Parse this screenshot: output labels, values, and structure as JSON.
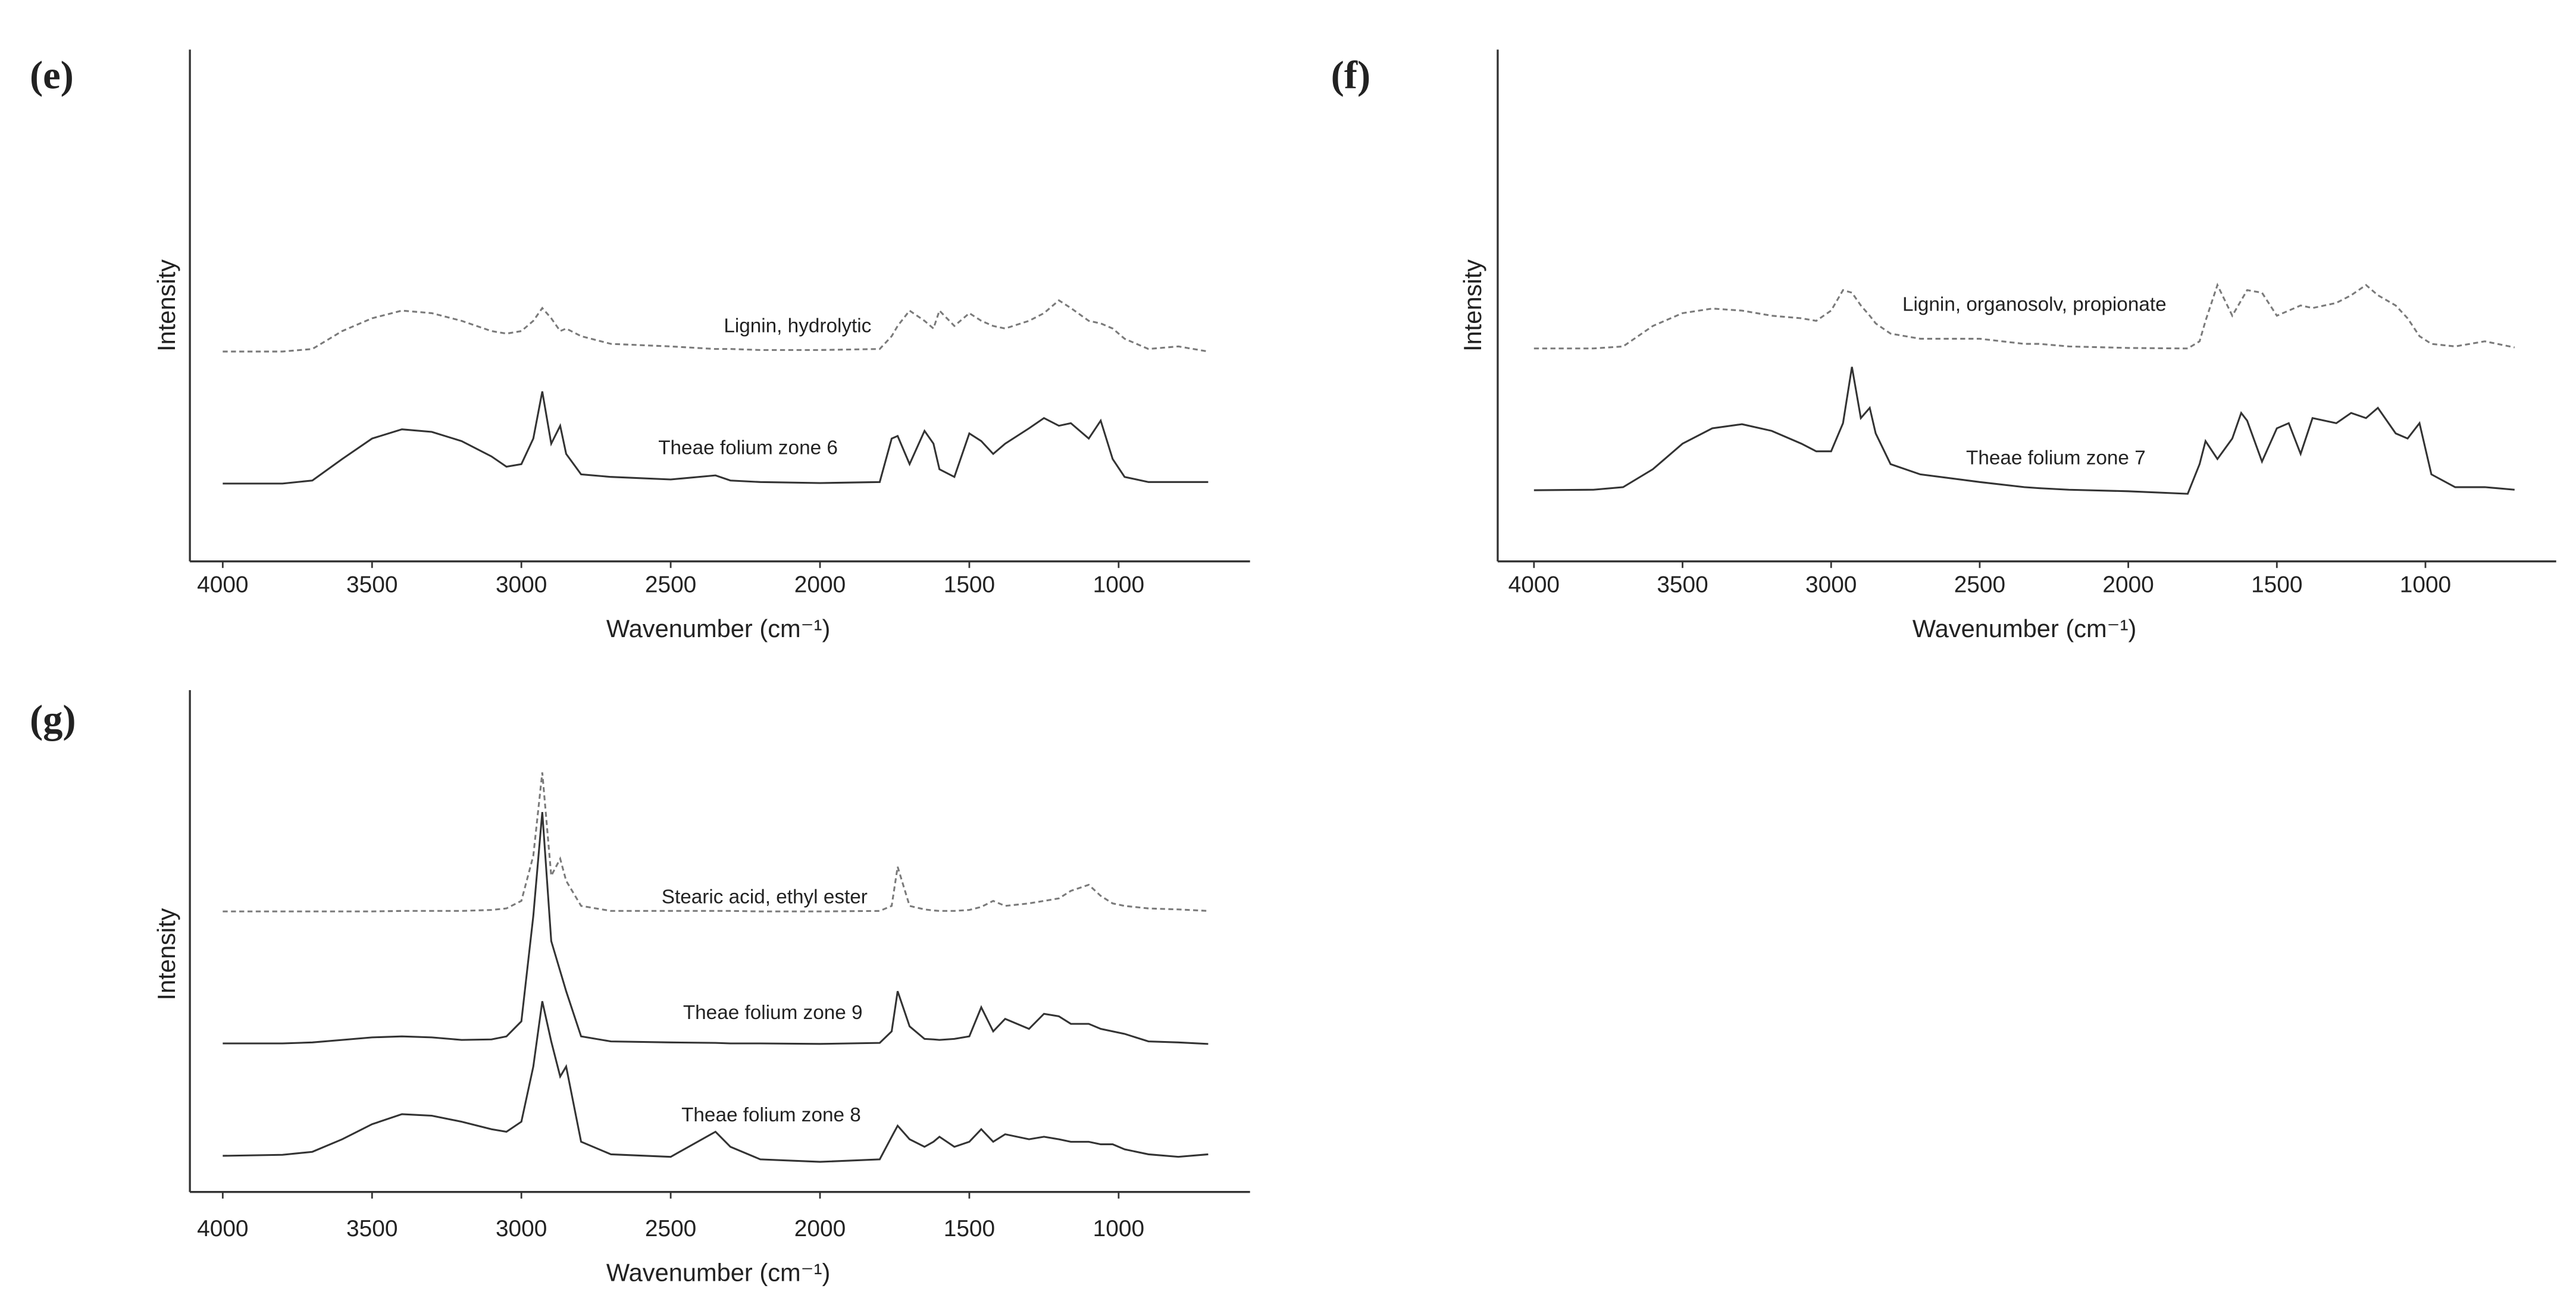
{
  "chart_data": [
    {
      "type": "line",
      "label": "(e)",
      "y_label": "Intensity",
      "x_label": "Wavenumber (cm⁻¹)",
      "xlim": [
        4110,
        560
      ],
      "xticks": [
        4000,
        3500,
        3000,
        2500,
        2000,
        1500,
        1000
      ],
      "ylim": [
        0,
        100
      ],
      "x": [
        4000,
        3800,
        3700,
        3600,
        3500,
        3400,
        3300,
        3200,
        3100,
        3050,
        3000,
        2960,
        2930,
        2900,
        2870,
        2850,
        2800,
        2700,
        2500,
        2350,
        2300,
        2200,
        2000,
        1800,
        1760,
        1740,
        1700,
        1650,
        1620,
        1600,
        1550,
        1500,
        1460,
        1420,
        1380,
        1300,
        1250,
        1200,
        1160,
        1100,
        1060,
        1020,
        980,
        900,
        800,
        700
      ],
      "series": [
        {
          "name": "Lignin, hydrolytic",
          "color": "#7a7a7a",
          "line_style": "dashed",
          "values": [
            41,
            41,
            41.5,
            45,
            47.5,
            49,
            48.5,
            47,
            45,
            44.5,
            45,
            47,
            49.5,
            47.5,
            45,
            45.5,
            44,
            42.5,
            42,
            41.5,
            41.5,
            41.3,
            41.3,
            41.5,
            44,
            46,
            49,
            47,
            45.5,
            49,
            46,
            48.5,
            47,
            46,
            45.5,
            47,
            48.5,
            51,
            49.5,
            47,
            46.5,
            45.5,
            43.5,
            41.5,
            42,
            41
          ]
        },
        {
          "name": "Theae folium zone 6",
          "color": "#333333",
          "line_style": "solid",
          "values": [
            15.2,
            15.2,
            15.8,
            20,
            24,
            25.8,
            25.3,
            23.5,
            20.5,
            18.5,
            19,
            24,
            33.2,
            23,
            26.5,
            21,
            17,
            16.5,
            16,
            16.8,
            15.8,
            15.5,
            15.3,
            15.5,
            24,
            24.5,
            19,
            25.5,
            23,
            18,
            16.5,
            25,
            23.5,
            21,
            23,
            26,
            28,
            26.5,
            27,
            24,
            27.5,
            20,
            16.5,
            15.5,
            15.5,
            15.5
          ]
        }
      ]
    },
    {
      "type": "line",
      "label": "(f)",
      "y_label": "Intensity",
      "x_label": "Wavenumber (cm⁻¹)",
      "xlim": [
        4122,
        560
      ],
      "xticks": [
        4000,
        3500,
        3000,
        2500,
        2000,
        1500,
        1000
      ],
      "ylim": [
        0,
        100
      ],
      "x": [
        4000,
        3800,
        3700,
        3600,
        3500,
        3400,
        3300,
        3200,
        3100,
        3050,
        3000,
        2960,
        2930,
        2900,
        2870,
        2850,
        2800,
        2700,
        2500,
        2350,
        2300,
        2200,
        2000,
        1800,
        1760,
        1740,
        1700,
        1650,
        1620,
        1600,
        1550,
        1500,
        1460,
        1420,
        1380,
        1300,
        1250,
        1200,
        1160,
        1100,
        1060,
        1020,
        980,
        900,
        800,
        700
      ],
      "series": [
        {
          "name": "Lignin, organosolv, propionate",
          "color": "#7a7a7a",
          "line_style": "dashed",
          "values": [
            41.6,
            41.6,
            42,
            46,
            48.5,
            49.4,
            49,
            48,
            47.5,
            47,
            49,
            53,
            52.5,
            50,
            48,
            46.5,
            44.5,
            43.5,
            43.5,
            42.5,
            42.5,
            42,
            41.7,
            41.6,
            43,
            47,
            54,
            48,
            51,
            53,
            52.5,
            48,
            49,
            50,
            49.5,
            50.5,
            52,
            54,
            52,
            50,
            47.5,
            44,
            42.5,
            42,
            43,
            41.8
          ]
        },
        {
          "name": "Theae folium zone 7",
          "color": "#333333",
          "line_style": "solid",
          "values": [
            13.9,
            14,
            14.5,
            18,
            23,
            26,
            26.8,
            25.5,
            23,
            21.5,
            21.5,
            27,
            38,
            28,
            30,
            25,
            19,
            17,
            15.5,
            14.5,
            14.3,
            14,
            13.7,
            13.2,
            19,
            23.5,
            20,
            24,
            29,
            27.5,
            19.5,
            26,
            27,
            21,
            28,
            27,
            29,
            28,
            30,
            25,
            24,
            27,
            17,
            14.5,
            14.5,
            14
          ]
        }
      ]
    },
    {
      "type": "line",
      "label": "(g)",
      "y_label": "Intensity",
      "x_label": "Wavenumber (cm⁻¹)",
      "xlim": [
        4110,
        560
      ],
      "xticks": [
        4000,
        3500,
        3000,
        2500,
        2000,
        1500,
        1000
      ],
      "ylim": [
        0,
        100
      ],
      "x": [
        4000,
        3800,
        3700,
        3600,
        3500,
        3400,
        3300,
        3200,
        3100,
        3050,
        3000,
        2960,
        2930,
        2900,
        2870,
        2850,
        2800,
        2700,
        2500,
        2350,
        2300,
        2200,
        2000,
        1800,
        1760,
        1740,
        1700,
        1650,
        1620,
        1600,
        1550,
        1500,
        1460,
        1420,
        1380,
        1300,
        1250,
        1200,
        1160,
        1100,
        1060,
        1020,
        980,
        900,
        800,
        700
      ],
      "series": [
        {
          "name": "Stearic acid, ethyl ester",
          "color": "#7a7a7a",
          "line_style": "dashed",
          "values": [
            55.9,
            55.9,
            55.9,
            55.9,
            55.9,
            56,
            56,
            56,
            56.2,
            56.5,
            58,
            67,
            83.6,
            63,
            66.4,
            62,
            57,
            56,
            56,
            56,
            56,
            55.9,
            55.9,
            56,
            57,
            64.8,
            57,
            56.3,
            56.1,
            56,
            56,
            56.2,
            56.8,
            58,
            57,
            57.5,
            58,
            58.5,
            60,
            61.2,
            59,
            57.5,
            57,
            56.5,
            56.3,
            56
          ]
        },
        {
          "name": "Theae folium zone 9",
          "color": "#333333",
          "line_style": "solid",
          "values": [
            29.6,
            29.6,
            29.8,
            30.3,
            30.8,
            31,
            30.8,
            30.3,
            30.4,
            31,
            34,
            55,
            75.7,
            50,
            44,
            40,
            31,
            30,
            29.8,
            29.7,
            29.6,
            29.6,
            29.5,
            29.7,
            32,
            40,
            33,
            30.5,
            30.4,
            30.3,
            30.5,
            31,
            36.8,
            32,
            34.5,
            32.5,
            35.5,
            35,
            33.5,
            33.5,
            32.5,
            32,
            31.5,
            30,
            29.8,
            29.5
          ]
        },
        {
          "name": "Theae folium zone 8",
          "color": "#333333",
          "line_style": "solid",
          "values": [
            7.2,
            7.4,
            8,
            10.5,
            13.5,
            15.5,
            15.2,
            14,
            12.5,
            12,
            14,
            25,
            38,
            30,
            23,
            25,
            10,
            7.5,
            7,
            12,
            9,
            6.5,
            6,
            6.5,
            11,
            13.2,
            10.5,
            9,
            10,
            11,
            9,
            10,
            12.5,
            10,
            11.5,
            10.5,
            11,
            10.5,
            10,
            10,
            9.5,
            9.5,
            8.5,
            7.5,
            7,
            7.5
          ]
        }
      ]
    }
  ]
}
